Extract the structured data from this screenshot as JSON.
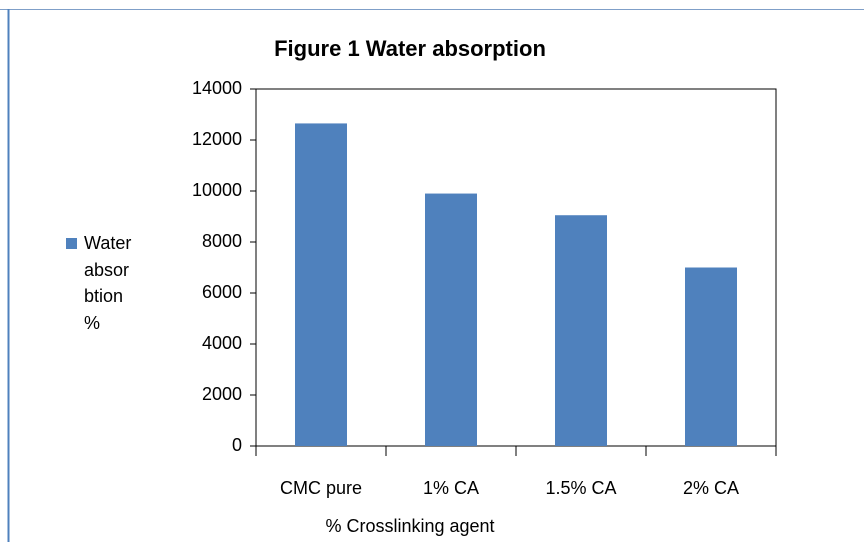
{
  "chart_data": {
    "type": "bar",
    "title": "Figure 1 Water absorption",
    "x_label": "% Crosslinking agent",
    "categories": [
      "CMC pure",
      "1% CA",
      "1.5% CA",
      "2% CA"
    ],
    "series": [
      {
        "name": "Water absorbtion %",
        "color": "#4f81bd",
        "values": [
          12650,
          9900,
          9050,
          7000
        ]
      }
    ],
    "ylim": [
      0,
      14000
    ],
    "yticks": [
      0,
      2000,
      4000,
      6000,
      8000,
      10000,
      12000,
      14000
    ],
    "grid": false,
    "legend": "left"
  }
}
